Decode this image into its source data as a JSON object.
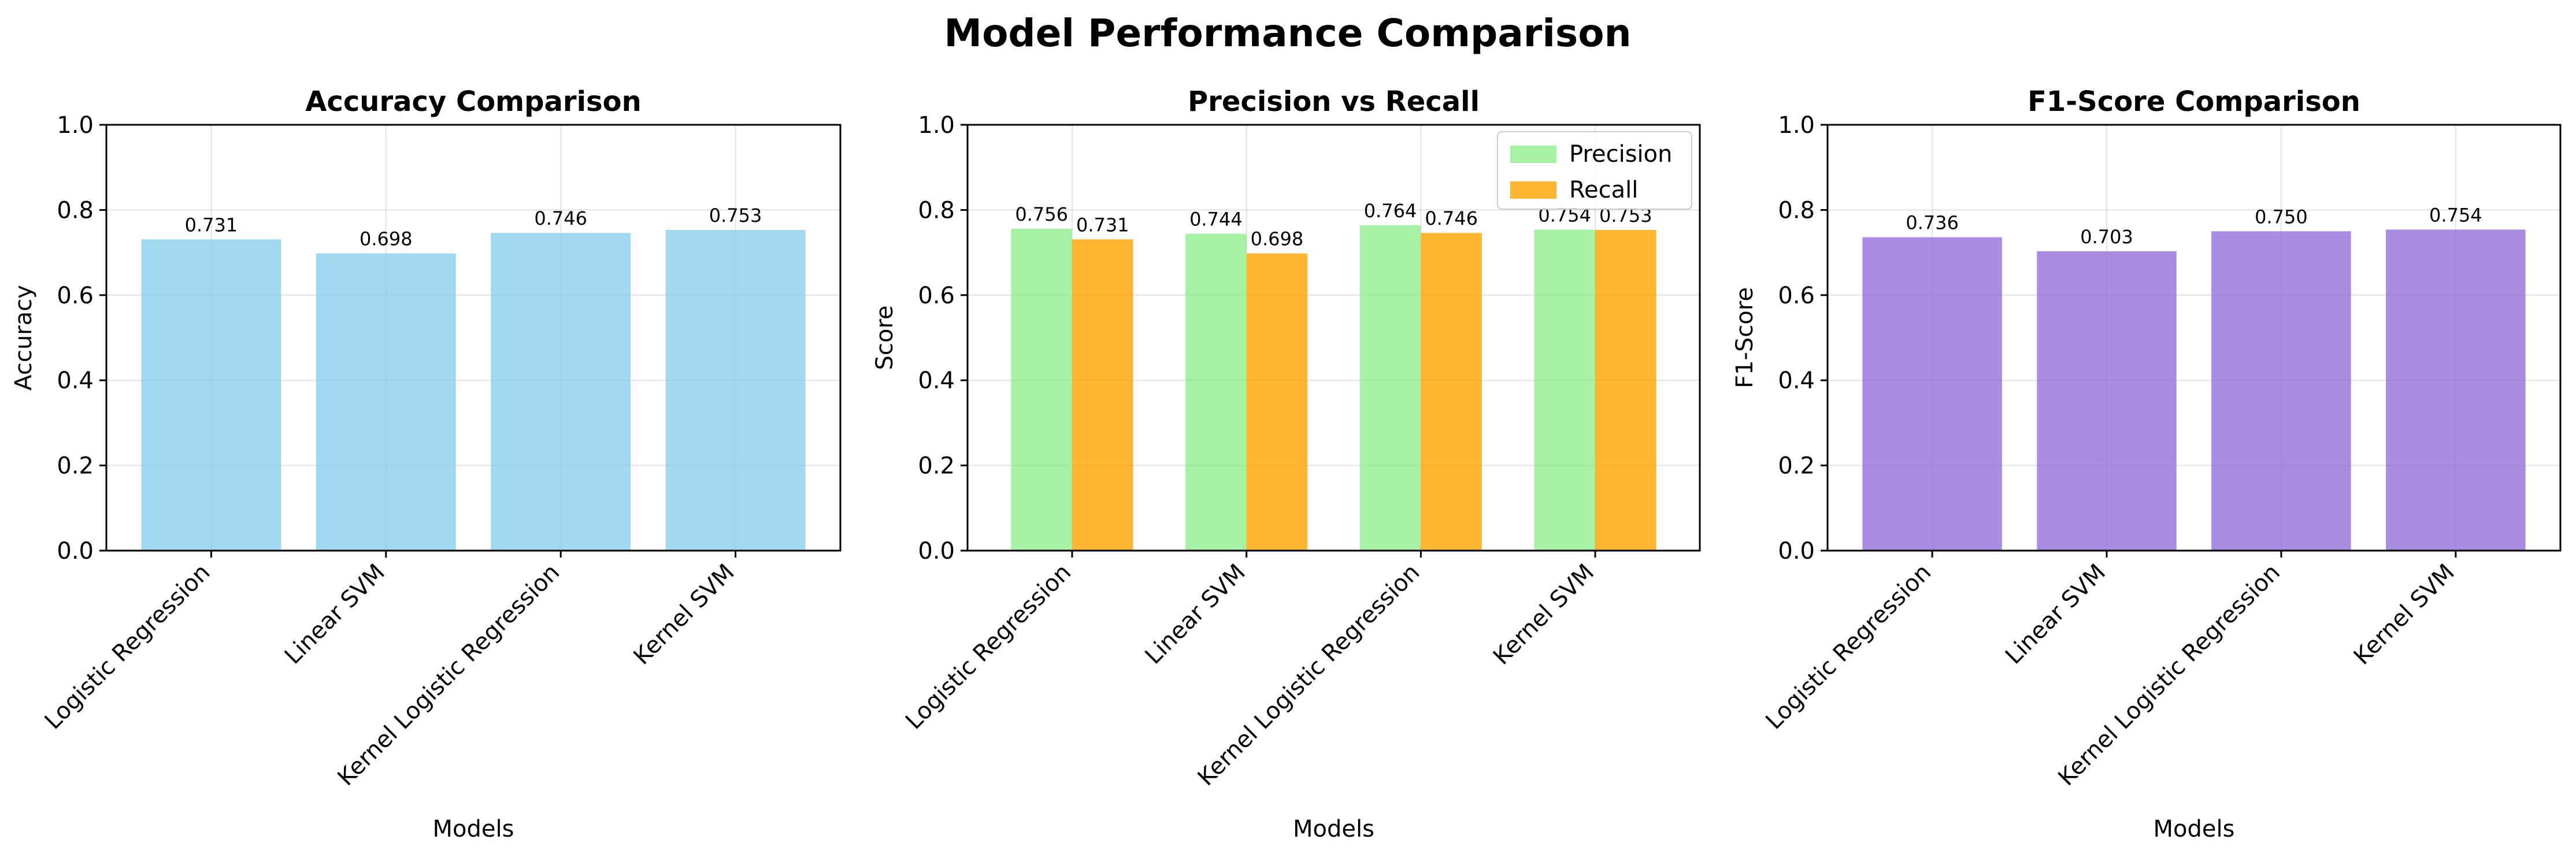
{
  "suptitle": "Model Performance Comparison",
  "chart_data": [
    {
      "type": "bar",
      "title": "Accuracy Comparison",
      "xlabel": "Models",
      "ylabel": "Accuracy",
      "ylim": [
        0,
        1.0
      ],
      "yticks": [
        "0.0",
        "0.2",
        "0.4",
        "0.6",
        "0.8",
        "1.0"
      ],
      "grid": true,
      "categories": [
        "Logistic Regression",
        "Linear SVM",
        "Kernel Logistic Regression",
        "Kernel SVM"
      ],
      "series": [
        {
          "values": [
            0.731,
            0.698,
            0.746,
            0.753
          ],
          "labels": [
            "0.731",
            "0.698",
            "0.746",
            "0.753"
          ],
          "color": "#87ceeb"
        }
      ]
    },
    {
      "type": "bar",
      "title": "Precision vs Recall",
      "xlabel": "Models",
      "ylabel": "Score",
      "ylim": [
        0,
        1.0
      ],
      "yticks": [
        "0.0",
        "0.2",
        "0.4",
        "0.6",
        "0.8",
        "1.0"
      ],
      "grid": true,
      "legend_position": "top-right",
      "categories": [
        "Logistic Regression",
        "Linear SVM",
        "Kernel Logistic Regression",
        "Kernel SVM"
      ],
      "series": [
        {
          "name": "Precision",
          "values": [
            0.756,
            0.744,
            0.764,
            0.754
          ],
          "labels": [
            "0.756",
            "0.744",
            "0.764",
            "0.754"
          ],
          "color": "#90ee90"
        },
        {
          "name": "Recall",
          "values": [
            0.731,
            0.698,
            0.746,
            0.753
          ],
          "labels": [
            "0.731",
            "0.698",
            "0.746",
            "0.753"
          ],
          "color": "#ffa500"
        }
      ]
    },
    {
      "type": "bar",
      "title": "F1-Score Comparison",
      "xlabel": "Models",
      "ylabel": "F1-Score",
      "ylim": [
        0,
        1.0
      ],
      "yticks": [
        "0.0",
        "0.2",
        "0.4",
        "0.6",
        "0.8",
        "1.0"
      ],
      "grid": true,
      "categories": [
        "Logistic Regression",
        "Linear SVM",
        "Kernel Logistic Regression",
        "Kernel SVM"
      ],
      "series": [
        {
          "values": [
            0.736,
            0.703,
            0.75,
            0.754
          ],
          "labels": [
            "0.736",
            "0.703",
            "0.750",
            "0.754"
          ],
          "color": "#9370db"
        }
      ]
    }
  ]
}
